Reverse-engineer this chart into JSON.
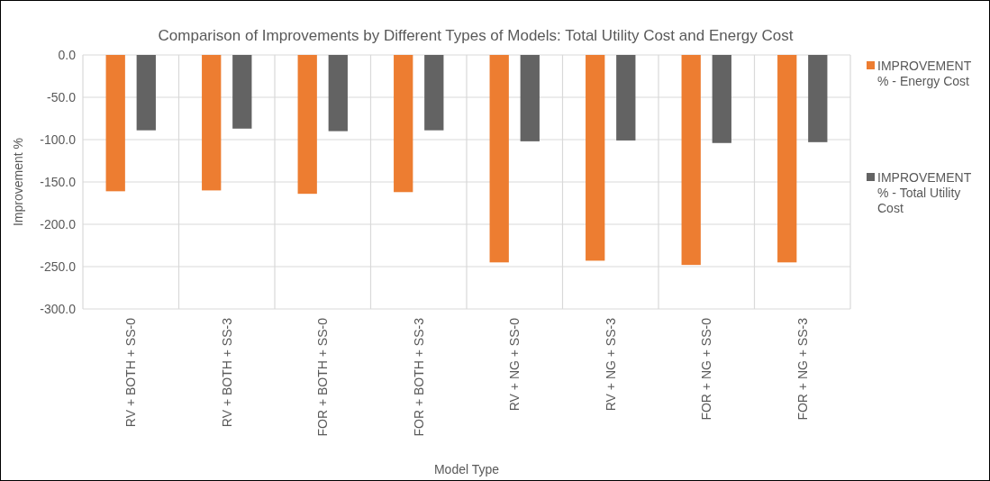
{
  "chart_data": {
    "type": "bar",
    "title": "Comparison of Improvements by Different Types of Models: Total Utility Cost and Energy Cost",
    "xlabel": "Model Type",
    "ylabel": "Improvement %",
    "categories": [
      "RV + BOTH + SS-0",
      "RV + BOTH + SS-3",
      "FOR + BOTH + SS-0",
      "FOR + BOTH + SS-3",
      "RV + NG + SS-0",
      "RV + NG + SS-3",
      "FOR + NG + SS-0",
      "FOR + NG + SS-3"
    ],
    "series": [
      {
        "name": "IMPROVEMENT % - Energy Cost",
        "color": "#ed7d31",
        "values": [
          -161,
          -160,
          -164,
          -162,
          -245,
          -243,
          -248,
          -245
        ]
      },
      {
        "name": "IMPROVEMENT % - Total Utility Cost",
        "color": "#636363",
        "values": [
          -89,
          -87,
          -90,
          -89,
          -102,
          -101,
          -104,
          -103
        ]
      }
    ],
    "ylim": [
      -300,
      0
    ],
    "yticks": [
      {
        "value": 0,
        "label": "0.0"
      },
      {
        "value": -50,
        "label": "-50.0"
      },
      {
        "value": -100,
        "label": "-100.0"
      },
      {
        "value": -150,
        "label": "-150.0"
      },
      {
        "value": -200,
        "label": "-200.0"
      },
      {
        "value": -250,
        "label": "-250.0"
      },
      {
        "value": -300,
        "label": "-300.0"
      }
    ],
    "grid": true,
    "legend": "right"
  }
}
